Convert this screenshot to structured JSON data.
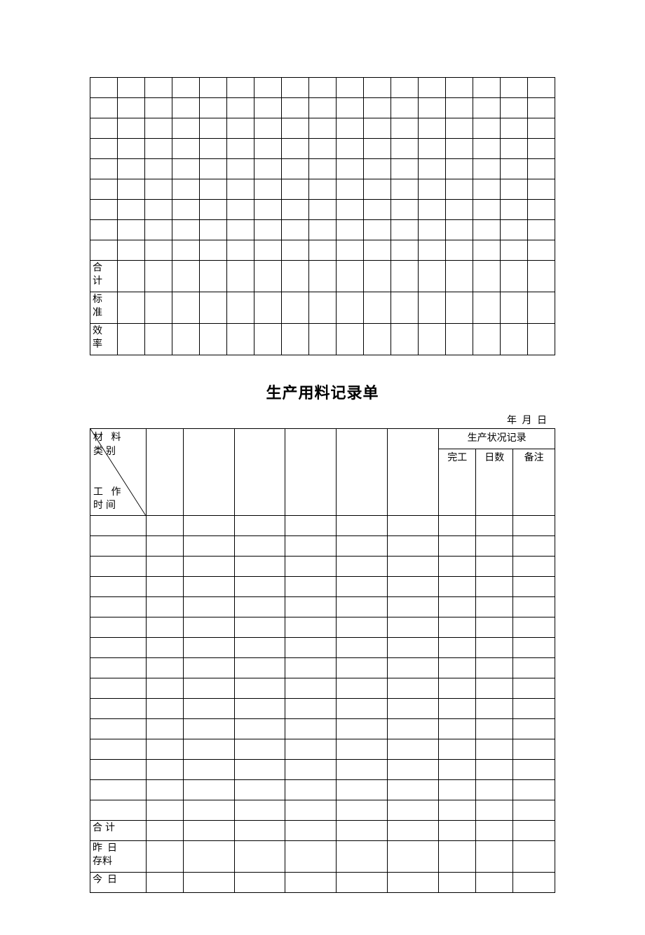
{
  "table1": {
    "cols": 17,
    "empty_rows": 9,
    "footer_labels": [
      "合计",
      "标准",
      "效率"
    ]
  },
  "title": "生产用料记录单",
  "dateline": "年   月   日",
  "table2": {
    "diag_top1": "材 料",
    "diag_top2": "类别",
    "diag_bot1": "工 作",
    "diag_bot2": "时间",
    "status_header": "生产状况记录",
    "status_sub": [
      "完工",
      "日数",
      "备注"
    ],
    "body_cols": 7,
    "empty_rows": 15,
    "footer_labels": [
      "合计",
      "昨 日存料",
      "今 日"
    ],
    "col_widths_pct": [
      12,
      8,
      11,
      11,
      11,
      11,
      11,
      8,
      8,
      9
    ]
  }
}
